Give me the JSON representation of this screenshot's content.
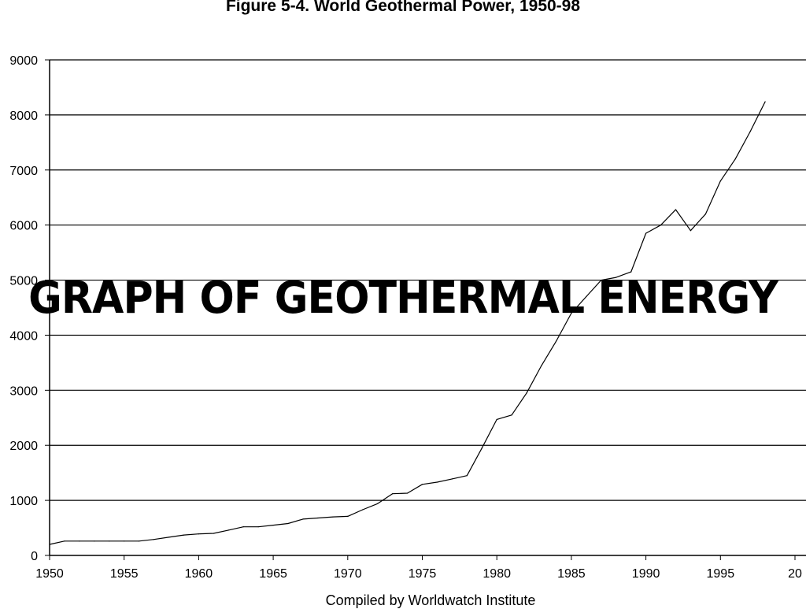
{
  "chart_data": {
    "type": "line",
    "title": "Figure 5-4. World Geothermal Power, 1950-98",
    "overlay_text": "GRAPH OF GEOTHERMAL ENERGY",
    "source": "Compiled by Worldwatch Institute",
    "xlabel": "",
    "ylabel": "",
    "xlim": [
      1950,
      2000
    ],
    "ylim": [
      0,
      9000
    ],
    "x_ticks": [
      "1950",
      "1955",
      "1960",
      "1965",
      "1970",
      "1975",
      "1980",
      "1985",
      "1990",
      "1995",
      "20"
    ],
    "y_ticks": [
      "0",
      "1000",
      "2000",
      "3000",
      "4000",
      "5000",
      "6000",
      "7000",
      "8000",
      "9000"
    ],
    "grid": "horizontal",
    "legend": "none",
    "line_color": "#000000",
    "series": [
      {
        "x": [
          1950,
          1951,
          1952,
          1953,
          1954,
          1955,
          1956,
          1957,
          1958,
          1959,
          1960,
          1961,
          1962,
          1963,
          1964,
          1965,
          1966,
          1967,
          1968,
          1969,
          1970,
          1971,
          1972,
          1973,
          1974,
          1975,
          1976,
          1977,
          1978,
          1979,
          1980,
          1981,
          1982,
          1983,
          1984,
          1985,
          1986,
          1987,
          1988,
          1989,
          1990,
          1991,
          1992,
          1993,
          1994,
          1995,
          1996,
          1997,
          1998
        ],
        "values": [
          200,
          260,
          260,
          260,
          260,
          260,
          260,
          290,
          330,
          370,
          390,
          400,
          460,
          520,
          520,
          550,
          580,
          660,
          680,
          700,
          710,
          830,
          940,
          1120,
          1130,
          1290,
          1330,
          1390,
          1450,
          1950,
          2470,
          2550,
          2950,
          3450,
          3900,
          4400,
          4700,
          5000,
          5050,
          5150,
          5850,
          6000,
          6280,
          5900,
          6200,
          6800,
          7200,
          7700,
          8240
        ]
      }
    ]
  }
}
